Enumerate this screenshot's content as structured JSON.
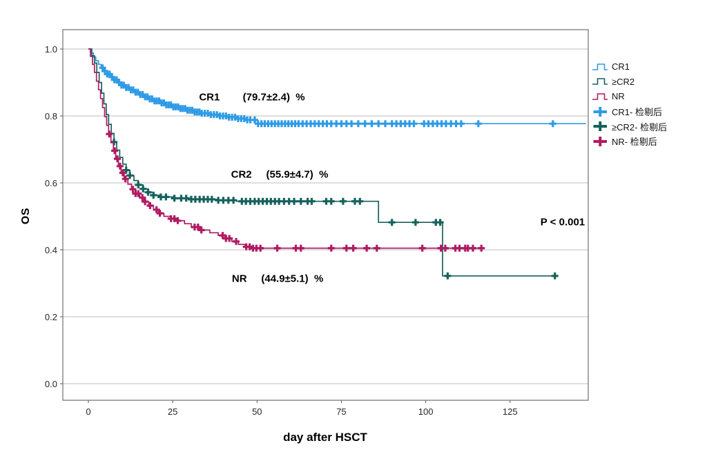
{
  "chart_data": {
    "type": "line",
    "subtype": "kaplan-meier-step",
    "title": "",
    "xlabel": "day after HSCT",
    "ylabel": "OS",
    "xlim": [
      0,
      148.3
    ],
    "ylim": [
      0.0,
      1.0
    ],
    "x_ticks": [
      [
        0,
        "0"
      ],
      [
        25,
        "25"
      ],
      [
        50,
        "50"
      ],
      [
        75,
        "75"
      ],
      [
        100,
        "100"
      ],
      [
        125,
        "125"
      ]
    ],
    "y_ticks": [
      [
        1.0,
        "1.0"
      ],
      [
        0.8,
        "0.8"
      ],
      [
        0.6,
        "0.6"
      ],
      [
        0.4,
        "0.4"
      ],
      [
        0.2,
        "0.2"
      ],
      [
        0.0,
        "0.0"
      ]
    ],
    "grid": "horizontal",
    "colors": {
      "CR1": "#2E9BE6",
      "CR2": "#16615B",
      "NR": "#B01A62",
      "grid": "#c9c9c9",
      "box": "#6e6e6e"
    },
    "series": [
      {
        "name": "CR1",
        "color": "#2E9BE6",
        "end": 147.5,
        "steps": [
          [
            0,
            1
          ],
          [
            0.8,
            0.988
          ],
          [
            1.5,
            0.976
          ],
          [
            2.2,
            0.965
          ],
          [
            3,
            0.954
          ],
          [
            3.8,
            0.944
          ],
          [
            4.6,
            0.934
          ],
          [
            5.5,
            0.925
          ],
          [
            6.5,
            0.916
          ],
          [
            7.5,
            0.908
          ],
          [
            8.6,
            0.9
          ],
          [
            9.8,
            0.892
          ],
          [
            11,
            0.885
          ],
          [
            12.3,
            0.878
          ],
          [
            13.6,
            0.871
          ],
          [
            15,
            0.864
          ],
          [
            16.5,
            0.857
          ],
          [
            18,
            0.851
          ],
          [
            19.6,
            0.845
          ],
          [
            21.2,
            0.839
          ],
          [
            23,
            0.833
          ],
          [
            25,
            0.827
          ],
          [
            27,
            0.822
          ],
          [
            29,
            0.817
          ],
          [
            31,
            0.812
          ],
          [
            33.5,
            0.808
          ],
          [
            36,
            0.804
          ],
          [
            38.5,
            0.8
          ],
          [
            41,
            0.796
          ],
          [
            44,
            0.792
          ],
          [
            47,
            0.788
          ],
          [
            49.5,
            0.777
          ]
        ],
        "censors": [
          4.2,
          4.9,
          5.6,
          6.3,
          7,
          7.7,
          8.4,
          9.1,
          9.8,
          10.5,
          11.2,
          11.9,
          12.6,
          13.3,
          14,
          14.7,
          15.4,
          16.1,
          16.8,
          17.5,
          18.2,
          18.9,
          19.6,
          20.3,
          21,
          21.7,
          22.4,
          23.1,
          23.8,
          24.5,
          25.2,
          25.9,
          26.6,
          27.3,
          28,
          28.7,
          29.4,
          30.1,
          30.8,
          31.5,
          32.2,
          32.9,
          33.6,
          34.5,
          35.4,
          36.3,
          37.2,
          38.1,
          39,
          39.9,
          40.8,
          41.7,
          42.6,
          43.5,
          44.4,
          45.3,
          46.2,
          47.1,
          48,
          49.3,
          50.3,
          51.3,
          52.3,
          53.3,
          54.3,
          55.3,
          56.3,
          57.3,
          58.3,
          59.3,
          60.3,
          61.3,
          62.3,
          63.5,
          64.7,
          65.9,
          67.1,
          68.3,
          69.5,
          70.7,
          72,
          73.5,
          75,
          76.5,
          78,
          80,
          82,
          84,
          86,
          88,
          90,
          91.3,
          92.6,
          93.9,
          95.2,
          96.5,
          99.5,
          100.8,
          102.1,
          103.4,
          104.7,
          106,
          107.5,
          109,
          110.5,
          115.6,
          137.7
        ]
      },
      {
        "name": "≥CR2",
        "color": "#16615B",
        "end": 139,
        "steps": [
          [
            0,
            1
          ],
          [
            1,
            0.98
          ],
          [
            1.8,
            0.958
          ],
          [
            2.5,
            0.93
          ],
          [
            3.2,
            0.9
          ],
          [
            3.9,
            0.868
          ],
          [
            4.6,
            0.836
          ],
          [
            5.3,
            0.804
          ],
          [
            6,
            0.775
          ],
          [
            6.8,
            0.748
          ],
          [
            7.6,
            0.722
          ],
          [
            8.4,
            0.698
          ],
          [
            9.3,
            0.676
          ],
          [
            10.2,
            0.656
          ],
          [
            11.2,
            0.638
          ],
          [
            12.3,
            0.622
          ],
          [
            13.5,
            0.607
          ],
          [
            14.8,
            0.594
          ],
          [
            16.2,
            0.582
          ],
          [
            17.7,
            0.572
          ],
          [
            19.3,
            0.563
          ],
          [
            21,
            0.558
          ],
          [
            25,
            0.554
          ],
          [
            30,
            0.551
          ],
          [
            38,
            0.548
          ],
          [
            44,
            0.545
          ],
          [
            86,
            0.482
          ],
          [
            105,
            0.322
          ]
        ],
        "censors": [
          7.6,
          11.2,
          12.3,
          14.8,
          16.2,
          17.7,
          19.3,
          21.5,
          23,
          25.5,
          27.5,
          29,
          30.5,
          31.7,
          33,
          34.2,
          35.4,
          36.6,
          38.5,
          40,
          41.5,
          43,
          45.5,
          46.7,
          48,
          49.3,
          50.5,
          51.7,
          52.9,
          54.1,
          55.3,
          56.5,
          58,
          59.5,
          61,
          63,
          65,
          66.2,
          70.5,
          72,
          75.5,
          79,
          80.5,
          90,
          97,
          103,
          104.3,
          106.5,
          138.3
        ]
      },
      {
        "name": "NR",
        "color": "#B01A62",
        "end": 117.5,
        "steps": [
          [
            0,
            1
          ],
          [
            0.6,
            0.978
          ],
          [
            1.2,
            0.954
          ],
          [
            1.8,
            0.93
          ],
          [
            2.4,
            0.904
          ],
          [
            3,
            0.878
          ],
          [
            3.6,
            0.852
          ],
          [
            4.2,
            0.825
          ],
          [
            4.8,
            0.798
          ],
          [
            5.4,
            0.772
          ],
          [
            6,
            0.746
          ],
          [
            6.7,
            0.72
          ],
          [
            7.4,
            0.696
          ],
          [
            8.1,
            0.672
          ],
          [
            8.9,
            0.65
          ],
          [
            9.7,
            0.63
          ],
          [
            10.6,
            0.612
          ],
          [
            11.7,
            0.596
          ],
          [
            12.8,
            0.581
          ],
          [
            14,
            0.568
          ],
          [
            15.2,
            0.556
          ],
          [
            16.5,
            0.544
          ],
          [
            17.9,
            0.532
          ],
          [
            19.3,
            0.52
          ],
          [
            20.8,
            0.509
          ],
          [
            22.4,
            0.5
          ],
          [
            24.5,
            0.493
          ],
          [
            26.5,
            0.487
          ],
          [
            28.5,
            0.478
          ],
          [
            30.5,
            0.468
          ],
          [
            33,
            0.459
          ],
          [
            36,
            0.451
          ],
          [
            38.5,
            0.443
          ],
          [
            40.5,
            0.434
          ],
          [
            42.5,
            0.425
          ],
          [
            44.5,
            0.416
          ],
          [
            46.5,
            0.409
          ],
          [
            48.5,
            0.405
          ]
        ],
        "censors": [
          6.2,
          7.8,
          8.6,
          9.4,
          10.2,
          11,
          13.2,
          14,
          14.8,
          16,
          16.8,
          18.3,
          20.2,
          21.2,
          24.5,
          25.5,
          26.5,
          31.5,
          32.5,
          33.5,
          39.8,
          40.8,
          41.8,
          43.8,
          46.8,
          47.8,
          48.8,
          49.8,
          51,
          56,
          61.5,
          63,
          72,
          76.5,
          78.5,
          82.5,
          85.5,
          99,
          104.5,
          105.8,
          108.8,
          110,
          111.7,
          112.5,
          114,
          116.5
        ]
      }
    ],
    "annotations": [
      {
        "id": "cr1",
        "text": "CR1        (79.7±2.4)  %",
        "day": 48.5,
        "os": 0.856
      },
      {
        "id": "cr2",
        "text": "CR2     (55.9±4.7)  %",
        "day": 56.7,
        "os": 0.625
      },
      {
        "id": "nr",
        "text": "NR     (44.9±5.1)  %",
        "day": 56.1,
        "os": 0.313
      },
      {
        "id": "pvalue",
        "text": "P < 0.001",
        "day": 140.6,
        "os": 0.4825
      }
    ],
    "legend": {
      "position": "right",
      "items": [
        {
          "label": "CR1",
          "symbol": "step-line",
          "series": "CR1"
        },
        {
          "label": "≥CR2",
          "symbol": "step-line",
          "series": "CR2"
        },
        {
          "label": "NR",
          "symbol": "step-line",
          "series": "NR"
        },
        {
          "label": "CR1- 检剔后",
          "symbol": "censor-cross",
          "series": "CR1"
        },
        {
          "label": "≥CR2- 检剔后",
          "symbol": "censor-cross",
          "series": "CR2"
        },
        {
          "label": "NR- 检剔后",
          "symbol": "censor-cross",
          "series": "NR"
        }
      ]
    },
    "layout": {
      "box": {
        "l": 91,
        "t": 43,
        "r": 852,
        "b": 580
      },
      "x0px": 128,
      "pxPerDay": 4.886,
      "y1px": 71,
      "pxPerUnit": 485
    }
  }
}
